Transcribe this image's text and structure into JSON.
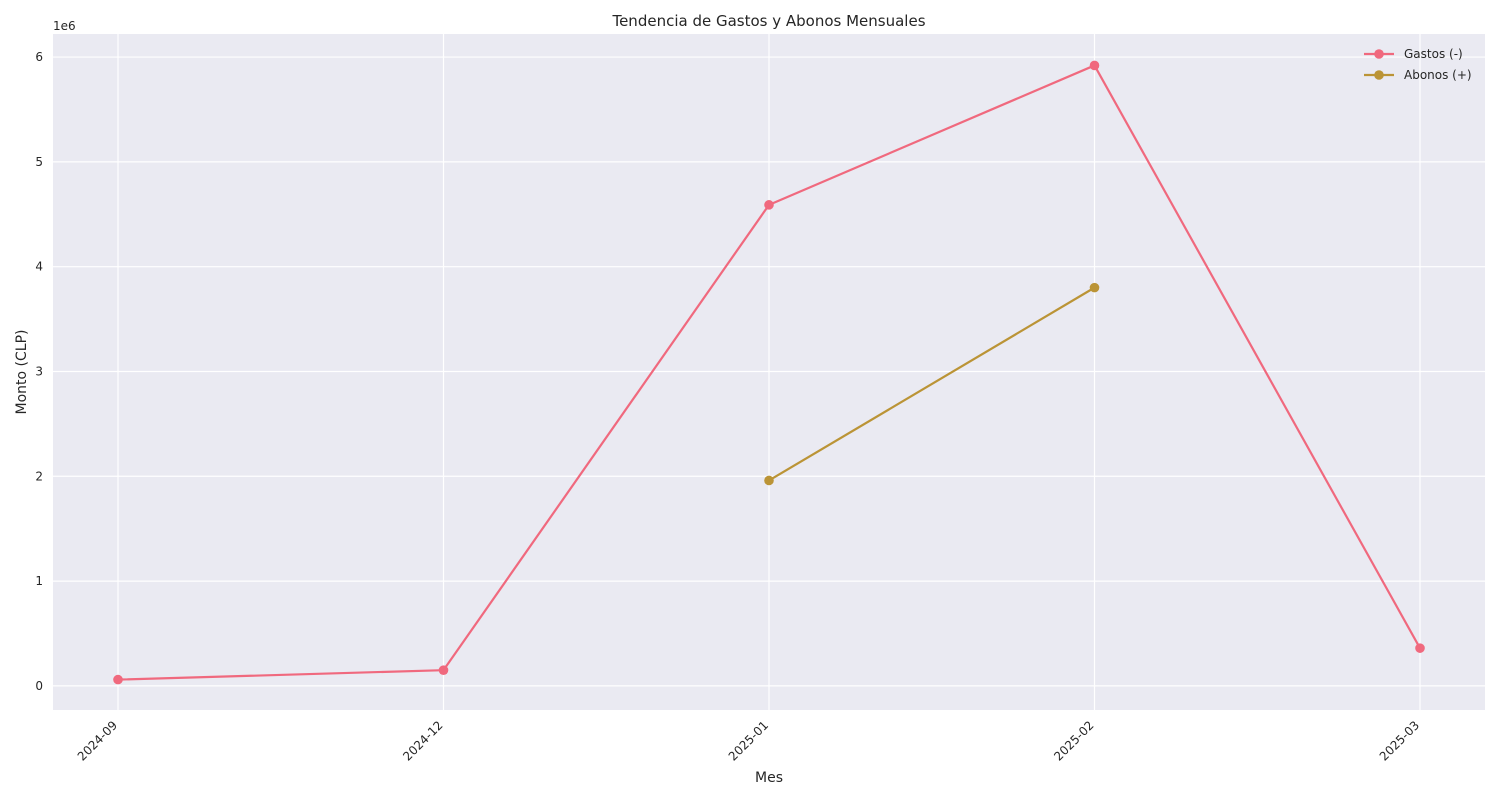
{
  "chart_data": {
    "type": "line",
    "title": "Tendencia de Gastos y Abonos Mensuales",
    "xlabel": "Mes",
    "ylabel": "Monto (CLP)",
    "y_offset_label": "1e6",
    "categories": [
      "2024-09",
      "2024-12",
      "2025-01",
      "2025-02",
      "2025-03"
    ],
    "ylim": [
      -230000,
      6220000
    ],
    "yticks": [
      0,
      1000000,
      2000000,
      3000000,
      4000000,
      5000000,
      6000000
    ],
    "ytick_labels": [
      "0",
      "1",
      "2",
      "3",
      "4",
      "5",
      "6"
    ],
    "grid": true,
    "legend_position": "top-right",
    "series": [
      {
        "name": "Gastos (-)",
        "color": "#f0697e",
        "values": [
          60000,
          150000,
          4590000,
          5920000,
          360000
        ]
      },
      {
        "name": "Abonos (+)",
        "color": "#bb9436",
        "values": [
          null,
          null,
          1960000,
          3800000,
          null
        ]
      }
    ]
  }
}
